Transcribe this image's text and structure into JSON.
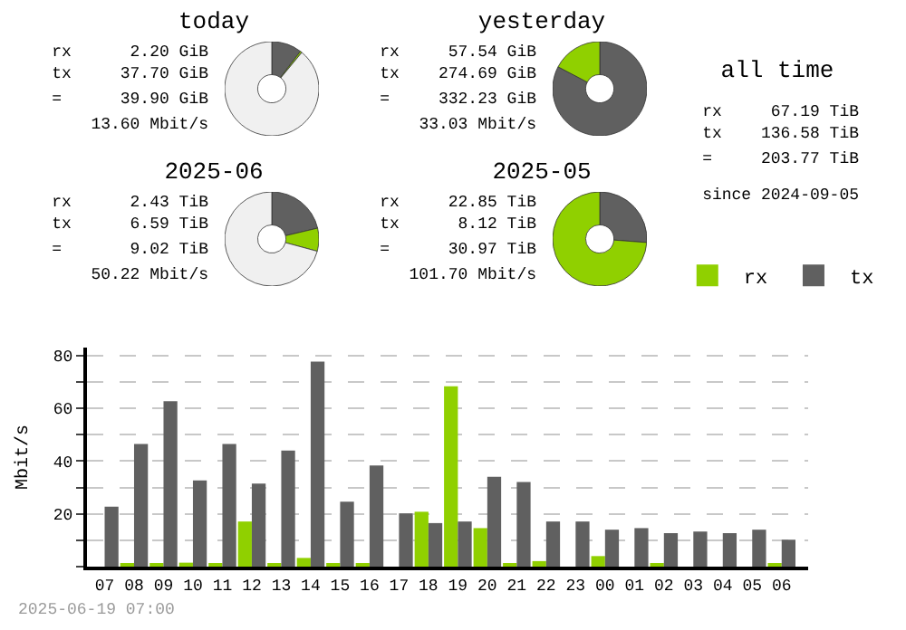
{
  "chart_data": [
    {
      "type": "donut",
      "title": "today",
      "categories": [
        null,
        null,
        null
      ],
      "values": [
        10.4,
        0.6,
        89
      ],
      "colors": [
        "#606060",
        "#90d000",
        "#f0f0f0"
      ],
      "annotations": [
        "rx      2.20 GiB",
        "tx     37.70 GiB",
        "=      39.90 GiB",
        "13.60 Mbit/s"
      ]
    },
    {
      "type": "donut",
      "title": "yesterday",
      "categories": [
        null,
        null
      ],
      "values": [
        82.7,
        17.3
      ],
      "colors": [
        "#606060",
        "#90d000"
      ],
      "annotations": [
        "rx     57.54 GiB",
        "tx    274.69 GiB",
        "=     332.23 GiB",
        "33.03 Mbit/s"
      ]
    },
    {
      "type": "other",
      "title": "all time",
      "annotations": [
        "rx     67.19 TiB",
        "tx    136.58 TiB",
        "=     203.77 TiB",
        "since 2024-09-05"
      ]
    },
    {
      "type": "donut",
      "title": "2025-06",
      "categories": [
        null,
        null,
        null
      ],
      "values": [
        21.3,
        7.9,
        70.8
      ],
      "colors": [
        "#606060",
        "#90d000",
        "#f0f0f0"
      ],
      "annotations": [
        "rx      2.43 TiB",
        "tx      6.59 TiB",
        "=       9.02 TiB",
        "50.22 Mbit/s"
      ]
    },
    {
      "type": "donut",
      "title": "2025-05",
      "categories": [
        null,
        null
      ],
      "values": [
        26.2,
        73.8
      ],
      "colors": [
        "#606060",
        "#90d000"
      ],
      "annotations": [
        "rx     22.85 TiB",
        "tx      8.12 TiB",
        "=      30.97 TiB",
        "101.70 Mbit/s"
      ]
    },
    {
      "type": "bar",
      "ylabel": "Mbit/s",
      "categories": [
        "07",
        "08",
        "09",
        "10",
        "11",
        "12",
        "13",
        "14",
        "15",
        "16",
        "17",
        "18",
        "19",
        "20",
        "21",
        "22",
        "23",
        "00",
        "01",
        "02",
        "03",
        "04",
        "05",
        "06"
      ],
      "series": [
        {
          "name": "rx",
          "color": "#90d000",
          "values": [
            0,
            0.8,
            0.8,
            1.5,
            0.8,
            17.1,
            0.8,
            3.3,
            0.8,
            0.8,
            0,
            20.8,
            68.3,
            14.6,
            0.8,
            2.1,
            0,
            4,
            0,
            0.8,
            0,
            0,
            0,
            0.8
          ]
        },
        {
          "name": "tx",
          "color": "#606060",
          "values": [
            22.7,
            46.5,
            62.7,
            32.7,
            46.5,
            31.5,
            44,
            77.7,
            24.6,
            38.3,
            20.2,
            16.5,
            17.1,
            34,
            32.1,
            17.1,
            17.1,
            14,
            14.6,
            12.7,
            13.3,
            12.7,
            14,
            10.2
          ]
        }
      ],
      "ylim": [
        0,
        83
      ],
      "yticks": [
        {
          "value": 0,
          "label": null
        },
        {
          "value": 10,
          "label": null
        },
        20,
        {
          "value": 30,
          "label": null
        },
        40,
        {
          "value": 50,
          "label": null
        },
        60,
        {
          "value": 70,
          "label": null
        },
        80
      ],
      "grid": true,
      "legend": "top right",
      "annotations": [
        "2025-06-19 07:00"
      ]
    }
  ]
}
